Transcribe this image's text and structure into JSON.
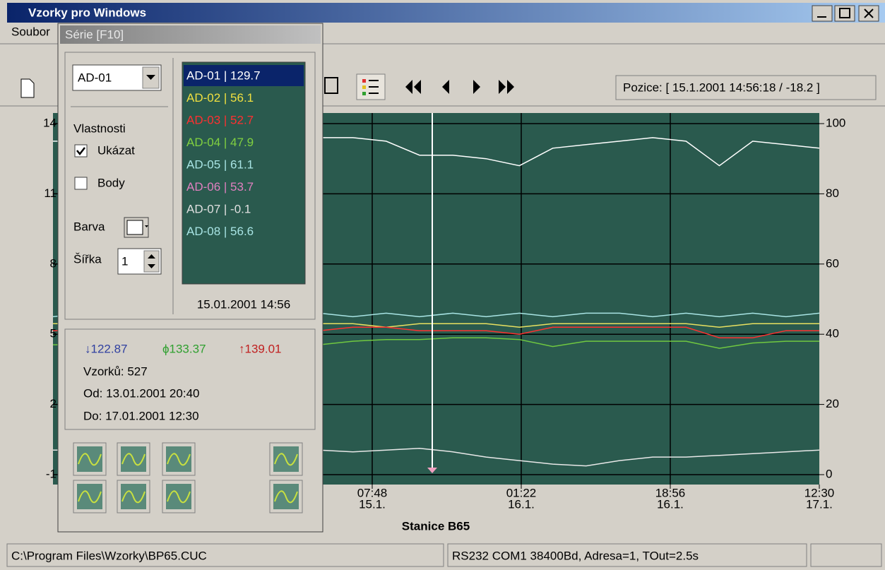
{
  "window": {
    "title": "Vzorky pro Windows",
    "menu": [
      "Soubor"
    ],
    "position": "Pozice: [ 15.1.2001 14:56:18 / -18.2 ]"
  },
  "chart_data": {
    "type": "line",
    "xlabel": "Stanice B65",
    "x_labels": [
      [
        "07:48",
        "15.1."
      ],
      [
        "01:22",
        "16.1."
      ],
      [
        "18:56",
        "16.1."
      ],
      [
        "12:30",
        "17.1."
      ]
    ],
    "ylim": [
      -1,
      14
    ],
    "yticks": [
      14,
      11,
      8,
      5,
      2,
      -1
    ],
    "y2lim": [
      0,
      100
    ],
    "y2ticks": [
      100,
      80,
      60,
      40,
      20,
      0
    ],
    "grid": true,
    "series": [
      {
        "axis": "y2",
        "color": "#ffffff",
        "values": [
          95,
          95,
          96,
          95,
          94,
          95,
          96,
          96,
          96,
          96,
          95,
          91,
          91,
          90,
          88,
          93,
          94,
          95,
          96,
          95,
          88,
          95,
          94,
          93
        ]
      },
      {
        "axis": "y2",
        "color": "#a8e4e4",
        "values": [
          45,
          46,
          45,
          46,
          45,
          46,
          45,
          46,
          46,
          45,
          46,
          45,
          46,
          45,
          46,
          45,
          46,
          46,
          45,
          46,
          45,
          46,
          45,
          46
        ]
      },
      {
        "axis": "y2",
        "color": "#e8e060",
        "values": [
          43,
          43,
          42,
          43,
          43,
          42,
          43,
          43,
          43,
          43,
          42,
          43,
          43,
          43,
          42,
          43,
          43,
          43,
          43,
          43,
          42,
          43,
          43,
          43
        ]
      },
      {
        "axis": "y2",
        "color": "#ff3030",
        "values": [
          41,
          41,
          41,
          41,
          41,
          41,
          41,
          41,
          41,
          42,
          42,
          41,
          41,
          41,
          40,
          42,
          42,
          42,
          42,
          42,
          39,
          39,
          41,
          41
        ]
      },
      {
        "axis": "y2",
        "color": "#70c840",
        "values": [
          37,
          37,
          38,
          37,
          37,
          38,
          37,
          37,
          37,
          38,
          38.5,
          38.5,
          39,
          39,
          38.5,
          36.5,
          38,
          38,
          38,
          38,
          36,
          37.5,
          38,
          38
        ]
      },
      {
        "axis": "y2",
        "color": "#e8e8e8",
        "values": [
          7,
          7,
          6.5,
          7,
          7,
          6.5,
          7,
          7,
          7,
          6.5,
          7,
          7.5,
          6.5,
          5,
          4,
          3,
          2.5,
          4,
          5,
          5,
          5.5,
          6,
          6.5,
          7
        ]
      }
    ]
  },
  "dialog": {
    "title": "Série [F10]",
    "selected": "AD-01",
    "properties": "Vlastnosti",
    "show": "Ukázat",
    "points": "Body",
    "color_label": "Barva",
    "width_label": "Šířka",
    "width": 1,
    "list": [
      {
        "label": "AD-01 | 129.7",
        "color": "#ffffff"
      },
      {
        "label": "AD-02 | 56.1",
        "color": "#f0e040"
      },
      {
        "label": "AD-03 | 52.7",
        "color": "#ff3030"
      },
      {
        "label": "AD-04 | 47.9",
        "color": "#80d040"
      },
      {
        "label": "AD-05 | 61.1",
        "color": "#a8e4e4"
      },
      {
        "label": "AD-06 | 53.7",
        "color": "#e080c0"
      },
      {
        "label": "AD-07 | -0.1",
        "color": "#e0e0e0"
      },
      {
        "label": "AD-08 | 56.6",
        "color": "#a8e4e4"
      }
    ],
    "timestamp": "15.01.2001 14:56",
    "min": "↓122.87",
    "avg": "ϕ133.37",
    "max": "↑139.01",
    "count": "Vzorků: 527",
    "from": "Od: 13.01.2001 20:40",
    "to": "Do: 17.01.2001 12:30"
  },
  "status": [
    "C:\\Program Files\\Wzorky\\BP65.CUC",
    "RS232 COM1 38400Bd, Adresa=1, TOut=2.5s"
  ]
}
